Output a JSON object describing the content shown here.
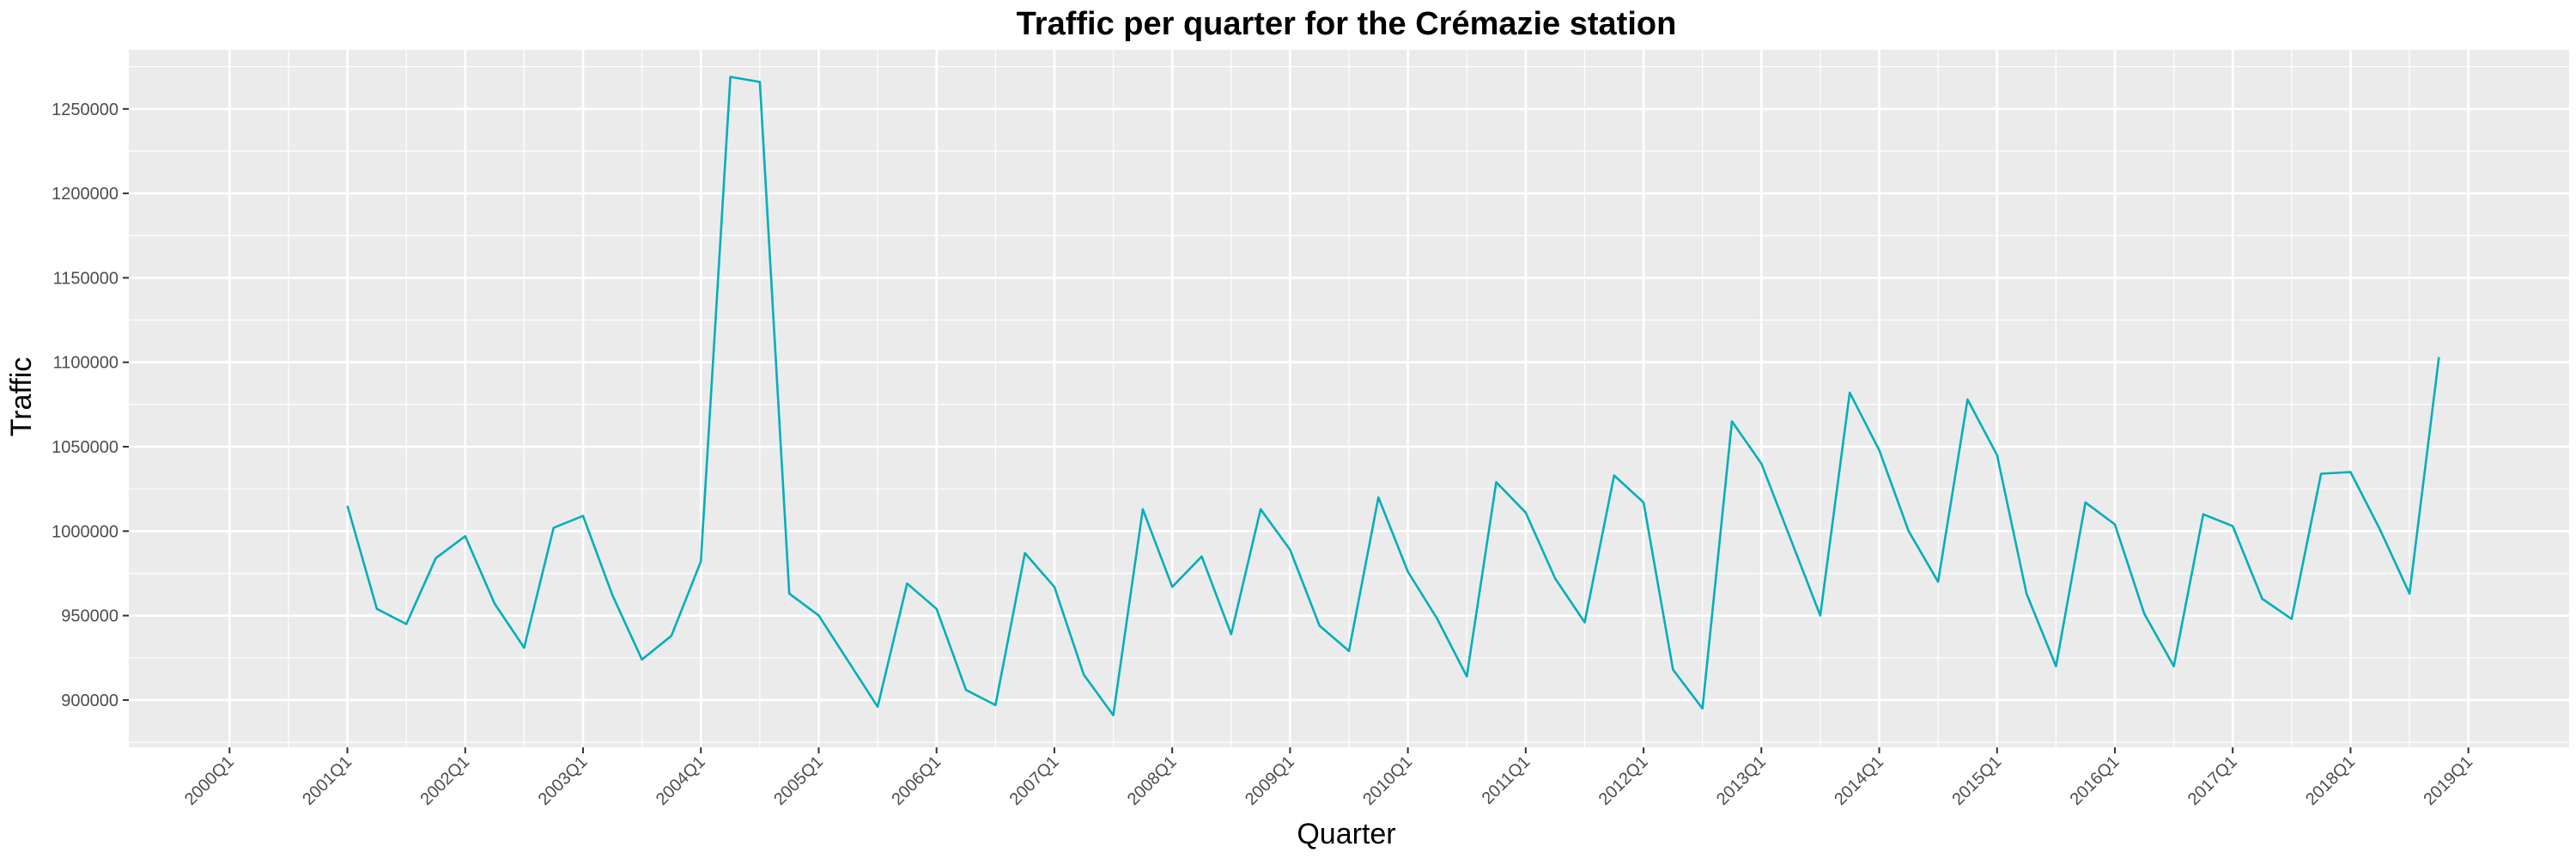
{
  "chart_data": {
    "type": "line",
    "title": "Traffic per quarter for the Crémazie station",
    "xlabel": "Quarter",
    "ylabel": "Traffic",
    "x_tick_labels": [
      "2000Q1",
      "2001Q1",
      "2002Q1",
      "2003Q1",
      "2004Q1",
      "2005Q1",
      "2006Q1",
      "2007Q1",
      "2008Q1",
      "2009Q1",
      "2010Q1",
      "2011Q1",
      "2012Q1",
      "2013Q1",
      "2014Q1",
      "2015Q1",
      "2016Q1",
      "2017Q1",
      "2018Q1",
      "2019Q1"
    ],
    "y_ticks": [
      900000,
      950000,
      1000000,
      1050000,
      1100000,
      1150000,
      1200000,
      1250000
    ],
    "ylim": [
      872000,
      1285000
    ],
    "grid": true,
    "legend": "none",
    "colors": {
      "line": "#00AFBB",
      "panel": "#EBEBEB",
      "grid": "#FFFFFF",
      "tick": "#333333"
    },
    "x": [
      "2001Q1",
      "2001Q2",
      "2001Q3",
      "2001Q4",
      "2002Q1",
      "2002Q2",
      "2002Q3",
      "2002Q4",
      "2003Q1",
      "2003Q2",
      "2003Q3",
      "2003Q4",
      "2004Q1",
      "2004Q2",
      "2004Q3",
      "2004Q4",
      "2005Q1",
      "2005Q2",
      "2005Q3",
      "2005Q4",
      "2006Q1",
      "2006Q2",
      "2006Q3",
      "2006Q4",
      "2007Q1",
      "2007Q2",
      "2007Q3",
      "2007Q4",
      "2008Q1",
      "2008Q2",
      "2008Q3",
      "2008Q4",
      "2009Q1",
      "2009Q2",
      "2009Q3",
      "2009Q4",
      "2010Q1",
      "2010Q2",
      "2010Q3",
      "2010Q4",
      "2011Q1",
      "2011Q2",
      "2011Q3",
      "2011Q4",
      "2012Q1",
      "2012Q2",
      "2012Q3",
      "2012Q4",
      "2013Q1",
      "2013Q2",
      "2013Q3",
      "2013Q4",
      "2014Q1",
      "2014Q2",
      "2014Q3",
      "2014Q4",
      "2015Q1",
      "2015Q2",
      "2015Q3",
      "2015Q4",
      "2016Q1",
      "2016Q2",
      "2016Q3",
      "2016Q4",
      "2017Q1",
      "2017Q2",
      "2017Q3",
      "2017Q4",
      "2018Q1",
      "2018Q2",
      "2018Q3",
      "2018Q4"
    ],
    "values": [
      1015000,
      954000,
      945000,
      984000,
      997000,
      957000,
      931000,
      1002000,
      1009000,
      962000,
      924000,
      938000,
      982000,
      1269000,
      1266000,
      963000,
      950000,
      923000,
      896000,
      969000,
      954000,
      906000,
      897000,
      987000,
      967000,
      915000,
      891000,
      1013000,
      967000,
      985000,
      939000,
      1013000,
      989000,
      944000,
      929000,
      1020000,
      976000,
      948000,
      914000,
      1029000,
      1011000,
      972000,
      946000,
      1033000,
      1017000,
      918000,
      895000,
      1065000,
      1040000,
      995000,
      950000,
      1082000,
      1048000,
      1000000,
      970000,
      1078000,
      1045000,
      963000,
      920000,
      1017000,
      1004000,
      951000,
      920000,
      1010000,
      1003000,
      960000,
      948000,
      1034000,
      1035000,
      1001000,
      963000,
      1103000
    ]
  }
}
